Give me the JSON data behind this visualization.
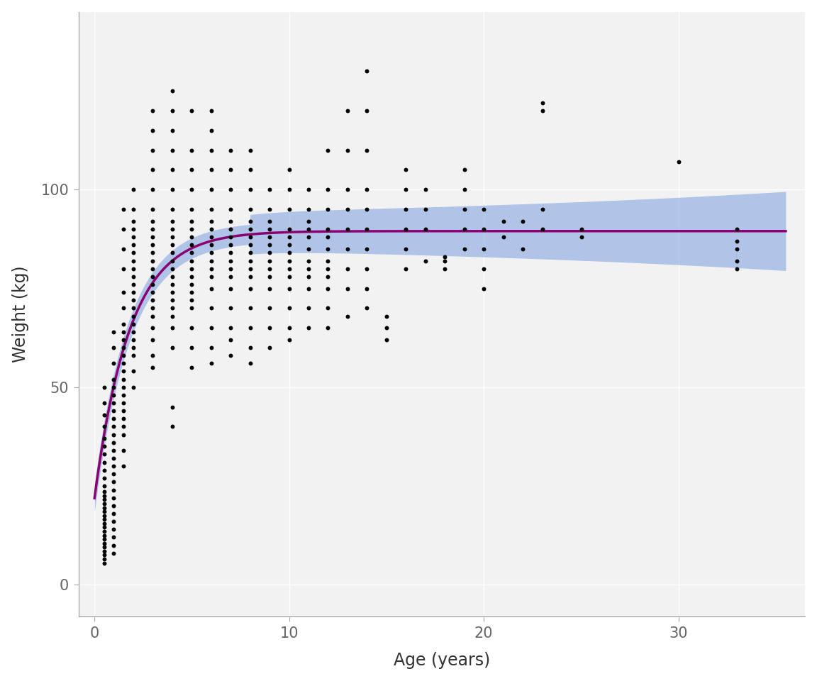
{
  "title": "",
  "xlabel": "Age (years)",
  "ylabel": "Weight (kg)",
  "xlim": [
    -0.8,
    36.5
  ],
  "ylim": [
    -8,
    145
  ],
  "xticks": [
    0,
    10,
    20,
    30
  ],
  "yticks": [
    0,
    50,
    100
  ],
  "background_color": "#F2F2F2",
  "panel_background": "#F2F2F2",
  "grid_color": "#FFFFFF",
  "point_color": "#000000",
  "point_size": 18,
  "line_color": "#8B0070",
  "ci_color": "#7B9FE0",
  "ci_alpha": 0.55,
  "vbgf_Winf": 89.5,
  "vbgf_k": 0.55,
  "vbgf_t0": -0.5,
  "scatter_data": [
    [
      0.5,
      5.5
    ],
    [
      0.5,
      6.5
    ],
    [
      0.5,
      7.5
    ],
    [
      0.5,
      8.5
    ],
    [
      0.5,
      9.5
    ],
    [
      0.5,
      10.5
    ],
    [
      0.5,
      11.5
    ],
    [
      0.5,
      12.5
    ],
    [
      0.5,
      13.5
    ],
    [
      0.5,
      14.5
    ],
    [
      0.5,
      15.5
    ],
    [
      0.5,
      16.5
    ],
    [
      0.5,
      17.5
    ],
    [
      0.5,
      18.5
    ],
    [
      0.5,
      19.5
    ],
    [
      0.5,
      20.5
    ],
    [
      0.5,
      21.5
    ],
    [
      0.5,
      22.5
    ],
    [
      0.5,
      23.5
    ],
    [
      0.5,
      25.0
    ],
    [
      0.5,
      27.0
    ],
    [
      0.5,
      29.0
    ],
    [
      0.5,
      31.0
    ],
    [
      0.5,
      33.0
    ],
    [
      0.5,
      35.0
    ],
    [
      0.5,
      37.0
    ],
    [
      0.5,
      40.0
    ],
    [
      0.5,
      43.0
    ],
    [
      0.5,
      46.0
    ],
    [
      0.5,
      50.0
    ],
    [
      1.0,
      8.0
    ],
    [
      1.0,
      10.0
    ],
    [
      1.0,
      12.0
    ],
    [
      1.0,
      14.0
    ],
    [
      1.0,
      16.0
    ],
    [
      1.0,
      18.0
    ],
    [
      1.0,
      20.0
    ],
    [
      1.0,
      22.0
    ],
    [
      1.0,
      24.0
    ],
    [
      1.0,
      26.0
    ],
    [
      1.0,
      28.0
    ],
    [
      1.0,
      30.0
    ],
    [
      1.0,
      32.0
    ],
    [
      1.0,
      34.0
    ],
    [
      1.0,
      36.0
    ],
    [
      1.0,
      38.0
    ],
    [
      1.0,
      40.0
    ],
    [
      1.0,
      42.0
    ],
    [
      1.0,
      44.0
    ],
    [
      1.0,
      46.0
    ],
    [
      1.0,
      48.0
    ],
    [
      1.0,
      50.0
    ],
    [
      1.0,
      52.0
    ],
    [
      1.0,
      56.0
    ],
    [
      1.0,
      60.0
    ],
    [
      1.0,
      64.0
    ],
    [
      1.5,
      30.0
    ],
    [
      1.5,
      34.0
    ],
    [
      1.5,
      38.0
    ],
    [
      1.5,
      40.0
    ],
    [
      1.5,
      42.0
    ],
    [
      1.5,
      44.0
    ],
    [
      1.5,
      46.0
    ],
    [
      1.5,
      48.0
    ],
    [
      1.5,
      50.0
    ],
    [
      1.5,
      52.0
    ],
    [
      1.5,
      54.0
    ],
    [
      1.5,
      56.0
    ],
    [
      1.5,
      58.0
    ],
    [
      1.5,
      60.0
    ],
    [
      1.5,
      62.0
    ],
    [
      1.5,
      64.0
    ],
    [
      1.5,
      66.0
    ],
    [
      1.5,
      70.0
    ],
    [
      1.5,
      74.0
    ],
    [
      1.5,
      80.0
    ],
    [
      1.5,
      85.0
    ],
    [
      1.5,
      90.0
    ],
    [
      1.5,
      95.0
    ],
    [
      2.0,
      50.0
    ],
    [
      2.0,
      54.0
    ],
    [
      2.0,
      58.0
    ],
    [
      2.0,
      60.0
    ],
    [
      2.0,
      62.0
    ],
    [
      2.0,
      64.0
    ],
    [
      2.0,
      66.0
    ],
    [
      2.0,
      68.0
    ],
    [
      2.0,
      70.0
    ],
    [
      2.0,
      72.0
    ],
    [
      2.0,
      74.0
    ],
    [
      2.0,
      76.0
    ],
    [
      2.0,
      78.0
    ],
    [
      2.0,
      80.0
    ],
    [
      2.0,
      82.0
    ],
    [
      2.0,
      84.0
    ],
    [
      2.0,
      86.0
    ],
    [
      2.0,
      88.0
    ],
    [
      2.0,
      90.0
    ],
    [
      2.0,
      92.0
    ],
    [
      2.0,
      95.0
    ],
    [
      2.0,
      100.0
    ],
    [
      3.0,
      55.0
    ],
    [
      3.0,
      58.0
    ],
    [
      3.0,
      62.0
    ],
    [
      3.0,
      65.0
    ],
    [
      3.0,
      68.0
    ],
    [
      3.0,
      70.0
    ],
    [
      3.0,
      72.0
    ],
    [
      3.0,
      74.0
    ],
    [
      3.0,
      76.0
    ],
    [
      3.0,
      78.0
    ],
    [
      3.0,
      80.0
    ],
    [
      3.0,
      82.0
    ],
    [
      3.0,
      84.0
    ],
    [
      3.0,
      86.0
    ],
    [
      3.0,
      88.0
    ],
    [
      3.0,
      90.0
    ],
    [
      3.0,
      92.0
    ],
    [
      3.0,
      95.0
    ],
    [
      3.0,
      100.0
    ],
    [
      3.0,
      105.0
    ],
    [
      3.0,
      110.0
    ],
    [
      3.0,
      115.0
    ],
    [
      3.0,
      120.0
    ],
    [
      4.0,
      40.0
    ],
    [
      4.0,
      45.0
    ],
    [
      4.0,
      60.0
    ],
    [
      4.0,
      65.0
    ],
    [
      4.0,
      68.0
    ],
    [
      4.0,
      70.0
    ],
    [
      4.0,
      72.0
    ],
    [
      4.0,
      74.0
    ],
    [
      4.0,
      76.0
    ],
    [
      4.0,
      78.0
    ],
    [
      4.0,
      80.0
    ],
    [
      4.0,
      82.0
    ],
    [
      4.0,
      84.0
    ],
    [
      4.0,
      86.0
    ],
    [
      4.0,
      88.0
    ],
    [
      4.0,
      90.0
    ],
    [
      4.0,
      92.0
    ],
    [
      4.0,
      95.0
    ],
    [
      4.0,
      100.0
    ],
    [
      4.0,
      105.0
    ],
    [
      4.0,
      110.0
    ],
    [
      4.0,
      115.0
    ],
    [
      4.0,
      120.0
    ],
    [
      4.0,
      125.0
    ],
    [
      5.0,
      55.0
    ],
    [
      5.0,
      60.0
    ],
    [
      5.0,
      65.0
    ],
    [
      5.0,
      70.0
    ],
    [
      5.0,
      72.0
    ],
    [
      5.0,
      74.0
    ],
    [
      5.0,
      76.0
    ],
    [
      5.0,
      78.0
    ],
    [
      5.0,
      80.0
    ],
    [
      5.0,
      82.0
    ],
    [
      5.0,
      84.0
    ],
    [
      5.0,
      86.0
    ],
    [
      5.0,
      88.0
    ],
    [
      5.0,
      90.0
    ],
    [
      5.0,
      92.0
    ],
    [
      5.0,
      95.0
    ],
    [
      5.0,
      100.0
    ],
    [
      5.0,
      105.0
    ],
    [
      5.0,
      110.0
    ],
    [
      5.0,
      120.0
    ],
    [
      6.0,
      56.0
    ],
    [
      6.0,
      60.0
    ],
    [
      6.0,
      65.0
    ],
    [
      6.0,
      70.0
    ],
    [
      6.0,
      75.0
    ],
    [
      6.0,
      78.0
    ],
    [
      6.0,
      80.0
    ],
    [
      6.0,
      82.0
    ],
    [
      6.0,
      84.0
    ],
    [
      6.0,
      86.0
    ],
    [
      6.0,
      88.0
    ],
    [
      6.0,
      90.0
    ],
    [
      6.0,
      92.0
    ],
    [
      6.0,
      95.0
    ],
    [
      6.0,
      100.0
    ],
    [
      6.0,
      105.0
    ],
    [
      6.0,
      110.0
    ],
    [
      6.0,
      115.0
    ],
    [
      6.0,
      120.0
    ],
    [
      7.0,
      58.0
    ],
    [
      7.0,
      62.0
    ],
    [
      7.0,
      65.0
    ],
    [
      7.0,
      70.0
    ],
    [
      7.0,
      75.0
    ],
    [
      7.0,
      78.0
    ],
    [
      7.0,
      80.0
    ],
    [
      7.0,
      82.0
    ],
    [
      7.0,
      84.0
    ],
    [
      7.0,
      86.0
    ],
    [
      7.0,
      88.0
    ],
    [
      7.0,
      90.0
    ],
    [
      7.0,
      92.0
    ],
    [
      7.0,
      95.0
    ],
    [
      7.0,
      100.0
    ],
    [
      7.0,
      105.0
    ],
    [
      7.0,
      110.0
    ],
    [
      8.0,
      56.0
    ],
    [
      8.0,
      60.0
    ],
    [
      8.0,
      65.0
    ],
    [
      8.0,
      70.0
    ],
    [
      8.0,
      75.0
    ],
    [
      8.0,
      78.0
    ],
    [
      8.0,
      80.0
    ],
    [
      8.0,
      82.0
    ],
    [
      8.0,
      84.0
    ],
    [
      8.0,
      86.0
    ],
    [
      8.0,
      88.0
    ],
    [
      8.0,
      90.0
    ],
    [
      8.0,
      92.0
    ],
    [
      8.0,
      95.0
    ],
    [
      8.0,
      100.0
    ],
    [
      8.0,
      105.0
    ],
    [
      8.0,
      110.0
    ],
    [
      9.0,
      60.0
    ],
    [
      9.0,
      65.0
    ],
    [
      9.0,
      70.0
    ],
    [
      9.0,
      75.0
    ],
    [
      9.0,
      78.0
    ],
    [
      9.0,
      80.0
    ],
    [
      9.0,
      82.0
    ],
    [
      9.0,
      84.0
    ],
    [
      9.0,
      86.0
    ],
    [
      9.0,
      88.0
    ],
    [
      9.0,
      90.0
    ],
    [
      9.0,
      92.0
    ],
    [
      9.0,
      95.0
    ],
    [
      9.0,
      100.0
    ],
    [
      10.0,
      62.0
    ],
    [
      10.0,
      65.0
    ],
    [
      10.0,
      70.0
    ],
    [
      10.0,
      75.0
    ],
    [
      10.0,
      78.0
    ],
    [
      10.0,
      80.0
    ],
    [
      10.0,
      82.0
    ],
    [
      10.0,
      84.0
    ],
    [
      10.0,
      86.0
    ],
    [
      10.0,
      88.0
    ],
    [
      10.0,
      90.0
    ],
    [
      10.0,
      95.0
    ],
    [
      10.0,
      100.0
    ],
    [
      10.0,
      105.0
    ],
    [
      11.0,
      65.0
    ],
    [
      11.0,
      70.0
    ],
    [
      11.0,
      75.0
    ],
    [
      11.0,
      78.0
    ],
    [
      11.0,
      80.0
    ],
    [
      11.0,
      82.0
    ],
    [
      11.0,
      85.0
    ],
    [
      11.0,
      88.0
    ],
    [
      11.0,
      90.0
    ],
    [
      11.0,
      92.0
    ],
    [
      11.0,
      95.0
    ],
    [
      11.0,
      100.0
    ],
    [
      12.0,
      65.0
    ],
    [
      12.0,
      70.0
    ],
    [
      12.0,
      75.0
    ],
    [
      12.0,
      78.0
    ],
    [
      12.0,
      80.0
    ],
    [
      12.0,
      82.0
    ],
    [
      12.0,
      85.0
    ],
    [
      12.0,
      88.0
    ],
    [
      12.0,
      90.0
    ],
    [
      12.0,
      95.0
    ],
    [
      12.0,
      100.0
    ],
    [
      12.0,
      110.0
    ],
    [
      13.0,
      68.0
    ],
    [
      13.0,
      75.0
    ],
    [
      13.0,
      80.0
    ],
    [
      13.0,
      85.0
    ],
    [
      13.0,
      90.0
    ],
    [
      13.0,
      95.0
    ],
    [
      13.0,
      100.0
    ],
    [
      13.0,
      110.0
    ],
    [
      13.0,
      120.0
    ],
    [
      14.0,
      70.0
    ],
    [
      14.0,
      75.0
    ],
    [
      14.0,
      80.0
    ],
    [
      14.0,
      85.0
    ],
    [
      14.0,
      90.0
    ],
    [
      14.0,
      95.0
    ],
    [
      14.0,
      100.0
    ],
    [
      14.0,
      110.0
    ],
    [
      14.0,
      120.0
    ],
    [
      14.0,
      130.0
    ],
    [
      15.0,
      62.0
    ],
    [
      15.0,
      65.0
    ],
    [
      15.0,
      68.0
    ],
    [
      16.0,
      80.0
    ],
    [
      16.0,
      85.0
    ],
    [
      16.0,
      90.0
    ],
    [
      16.0,
      95.0
    ],
    [
      16.0,
      100.0
    ],
    [
      16.0,
      105.0
    ],
    [
      17.0,
      82.0
    ],
    [
      17.0,
      90.0
    ],
    [
      17.0,
      95.0
    ],
    [
      17.0,
      100.0
    ],
    [
      18.0,
      80.0
    ],
    [
      18.0,
      82.0
    ],
    [
      18.0,
      83.0
    ],
    [
      19.0,
      85.0
    ],
    [
      19.0,
      90.0
    ],
    [
      19.0,
      95.0
    ],
    [
      19.0,
      100.0
    ],
    [
      19.0,
      105.0
    ],
    [
      20.0,
      75.0
    ],
    [
      20.0,
      80.0
    ],
    [
      20.0,
      85.0
    ],
    [
      20.0,
      90.0
    ],
    [
      20.0,
      95.0
    ],
    [
      21.0,
      88.0
    ],
    [
      21.0,
      92.0
    ],
    [
      22.0,
      85.0
    ],
    [
      22.0,
      92.0
    ],
    [
      23.0,
      90.0
    ],
    [
      23.0,
      95.0
    ],
    [
      23.0,
      120.0
    ],
    [
      23.0,
      122.0
    ],
    [
      25.0,
      88.0
    ],
    [
      25.0,
      90.0
    ],
    [
      30.0,
      107.0
    ],
    [
      33.0,
      80.0
    ],
    [
      33.0,
      82.0
    ],
    [
      33.0,
      85.0
    ],
    [
      33.0,
      87.0
    ],
    [
      33.0,
      90.0
    ]
  ]
}
